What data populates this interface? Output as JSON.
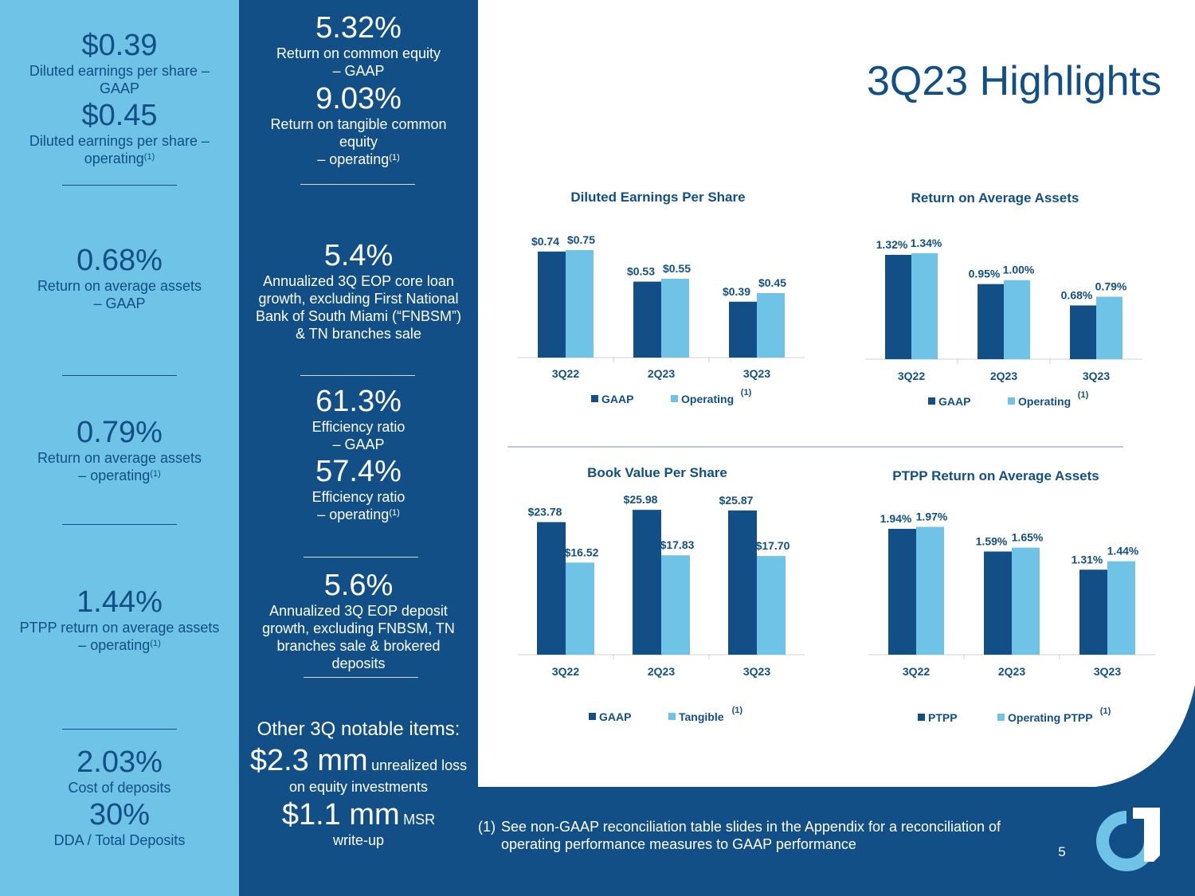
{
  "title": "3Q23 Highlights",
  "left_column": {
    "eps_gaap": {
      "value": "$0.39",
      "label": "Diluted earnings per share –",
      "label2": "GAAP"
    },
    "eps_operating": {
      "value": "$0.45",
      "label": "Diluted earnings per share –",
      "label2": "operating",
      "sup": "(1)"
    },
    "roaa_gaap": {
      "value": "0.68%",
      "label": "Return on average assets",
      "label2": "– GAAP"
    },
    "roaa_operating": {
      "value": "0.79%",
      "label": "Return on average assets",
      "label2": "– operating",
      "sup": "(1)"
    },
    "ptpp_roaa": {
      "value": "1.44%",
      "label": "PTPP return on average assets",
      "label2": "– operating",
      "sup": "(1)"
    },
    "cost_of_deposits": {
      "value": "2.03%",
      "label": "Cost of deposits"
    },
    "dda_ratio": {
      "value": "30%",
      "label": "DDA / Total Deposits"
    }
  },
  "middle_column": {
    "roce_gaap": {
      "value": "5.32%",
      "label": "Return on common equity",
      "label2": "– GAAP"
    },
    "rotce_operating": {
      "value": "9.03%",
      "label": "Return on tangible common",
      "label2": "equity",
      "label3": "– operating",
      "sup": "(1)"
    },
    "loan_growth": {
      "value": "5.4%",
      "line1": "Annualized 3Q EOP core loan",
      "line2": "growth, excluding First National",
      "line3": "Bank of South Miami (“FNBSM”)",
      "line4": "& TN branches sale"
    },
    "efficiency_gaap": {
      "value": "61.3%",
      "label": "Efficiency ratio",
      "label2": "– GAAP"
    },
    "efficiency_operating": {
      "value": "57.4%",
      "label": "Efficiency ratio",
      "label2": "– operating",
      "sup": "(1)"
    },
    "deposit_growth": {
      "value": "5.6%",
      "line1": "Annualized 3Q EOP deposit",
      "line2": "growth, excluding FNBSM, TN",
      "line3": "branches sale & brokered",
      "line4": "deposits"
    },
    "notable": {
      "heading": "Other 3Q notable items:",
      "item1_amount": "$2.3 mm",
      "item1_text": "unrealized loss",
      "item1_text2": "on equity investments",
      "item2_amount": "$1.1 mm",
      "item2_text": "MSR",
      "item2_text2": "write-up"
    }
  },
  "chart_data": [
    {
      "type": "bar",
      "title": "Diluted Earnings Per Share",
      "categories": [
        "3Q22",
        "2Q23",
        "3Q23"
      ],
      "series": [
        {
          "name": "GAAP",
          "values": [
            0.74,
            0.53,
            0.39
          ],
          "labels": [
            "$0.74",
            "$0.53",
            "$0.39"
          ]
        },
        {
          "name": "Operating",
          "values": [
            0.75,
            0.55,
            0.45
          ],
          "labels": [
            "$0.75",
            "$0.55",
            "$0.45"
          ],
          "sup": "(1)"
        }
      ],
      "ylim": [
        0,
        0.8
      ],
      "legend": "bottom"
    },
    {
      "type": "bar",
      "title": "Return on Average Assets",
      "categories": [
        "3Q22",
        "2Q23",
        "3Q23"
      ],
      "series": [
        {
          "name": "GAAP",
          "values": [
            1.32,
            0.95,
            0.68
          ],
          "labels": [
            "1.32%",
            "0.95%",
            "0.68%"
          ]
        },
        {
          "name": "Operating",
          "values": [
            1.34,
            1.0,
            0.79
          ],
          "labels": [
            "1.34%",
            "1.00%",
            "0.79%"
          ],
          "sup": "(1)"
        }
      ],
      "ylim": [
        0,
        1.4
      ],
      "legend": "bottom"
    },
    {
      "type": "bar",
      "title": "Book Value Per Share",
      "categories": [
        "3Q22",
        "2Q23",
        "3Q23"
      ],
      "series": [
        {
          "name": "GAAP",
          "values": [
            23.78,
            25.98,
            25.87
          ],
          "labels": [
            "$23.78",
            "$25.98",
            "$25.87"
          ]
        },
        {
          "name": "Tangible",
          "values": [
            16.52,
            17.83,
            17.7
          ],
          "labels": [
            "$16.52",
            "$17.83",
            "$17.70"
          ],
          "sup": "(1)"
        }
      ],
      "ylim": [
        0,
        27
      ],
      "legend": "bottom"
    },
    {
      "type": "bar",
      "title": "PTPP Return on Average Assets",
      "categories": [
        "3Q22",
        "2Q23",
        "3Q23"
      ],
      "series": [
        {
          "name": "PTPP",
          "values": [
            1.94,
            1.59,
            1.31
          ],
          "labels": [
            "1.94%",
            "1.59%",
            "1.31%"
          ]
        },
        {
          "name": "Operating PTPP",
          "values": [
            1.97,
            1.65,
            1.44
          ],
          "labels": [
            "1.97%",
            "1.65%",
            "1.44%"
          ],
          "sup": "(1)"
        }
      ],
      "ylim": [
        0,
        2.05
      ],
      "legend": "bottom"
    }
  ],
  "footnote": {
    "mark": "(1)",
    "text": "See non-GAAP reconciliation table slides in the Appendix for a reconciliation of operating performance measures to GAAP performance"
  },
  "page_number": "5",
  "colors": {
    "dark_blue": "#114f86",
    "light_blue": "#6ec3e7",
    "white": "#ffffff",
    "bar_dark": "#114f86",
    "bar_light": "#6ec3e7"
  }
}
